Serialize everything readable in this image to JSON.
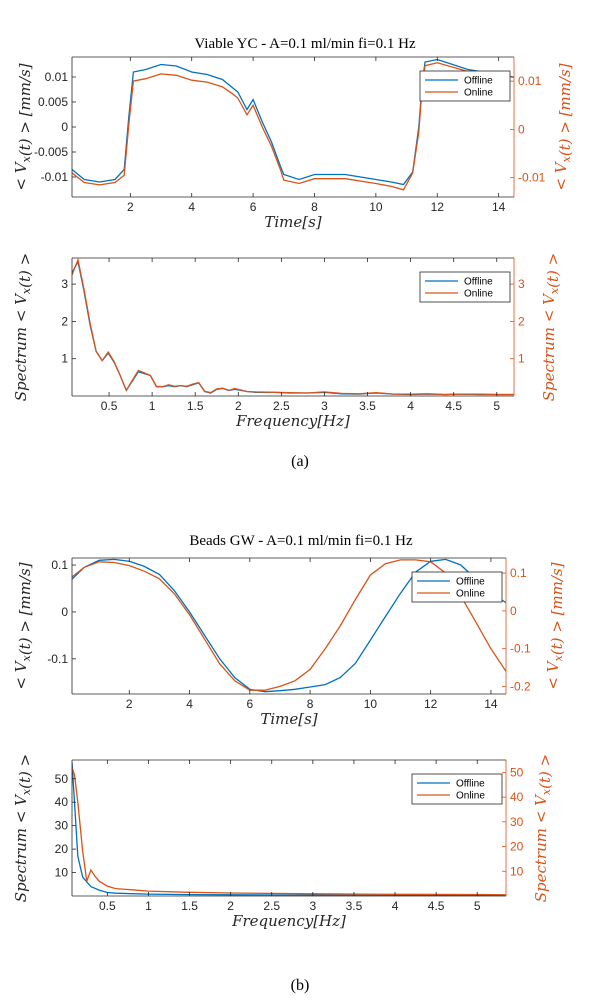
{
  "colors": {
    "offline": "#0072BD",
    "online": "#D95319",
    "axis": "#262626"
  },
  "figure": {
    "caption_a": "(a)",
    "caption_b": "(b)",
    "title_a": "Viable YC - A=0.1 ml/min fi=0.1 Hz",
    "title_b": "Beads GW - A=0.1 ml/min fi=0.1 Hz"
  },
  "chart_data": [
    {
      "type": "line",
      "title": "Viable YC - A=0.1 ml/min fi=0.1 Hz",
      "xlabel": "Time[s]",
      "ylabel_left": "< V_x(t) > [mm/s]",
      "ylabel_right": "< V_x(t) > [mm/s]",
      "xlim": [
        0.1,
        14.5
      ],
      "ylim_left": [
        -0.014,
        0.014
      ],
      "ylim_right": [
        -0.014,
        0.015
      ],
      "xticks": [
        "2",
        "4",
        "6",
        "8",
        "10",
        "12",
        "14"
      ],
      "yticks_left": [
        "-0.01",
        "-0.005",
        "0",
        "0.005",
        "0.01"
      ],
      "yticks_right": [
        "-0.01",
        "0",
        "0.01"
      ],
      "legend": [
        "Offline",
        "Online"
      ],
      "legend_position": "top-right",
      "series": [
        {
          "name": "Offline",
          "axis": "left",
          "x": [
            0.1,
            0.5,
            1.0,
            1.5,
            1.8,
            1.95,
            2.1,
            2.5,
            3.0,
            3.5,
            4.0,
            4.5,
            5.0,
            5.3,
            5.5,
            5.8,
            6.0,
            6.3,
            6.6,
            6.9,
            7.0,
            7.5,
            8.0,
            9.0,
            10.0,
            10.5,
            10.9,
            11.2,
            11.4,
            11.5,
            11.6,
            12.0,
            13.0,
            14.0,
            14.5
          ],
          "y": [
            -0.0085,
            -0.0105,
            -0.011,
            -0.0105,
            -0.0085,
            0.002,
            0.011,
            0.0115,
            0.0125,
            0.0122,
            0.011,
            0.0105,
            0.0095,
            0.008,
            0.007,
            0.0035,
            0.0055,
            0.001,
            -0.003,
            -0.008,
            -0.0095,
            -0.0105,
            -0.0095,
            -0.0095,
            -0.0105,
            -0.011,
            -0.0115,
            -0.009,
            -0.0,
            0.008,
            0.013,
            0.0135,
            0.0115,
            0.0105,
            0.01
          ]
        },
        {
          "name": "Online",
          "axis": "right",
          "x": [
            0.1,
            0.5,
            1.0,
            1.5,
            1.8,
            1.95,
            2.1,
            2.5,
            3.0,
            3.5,
            4.0,
            4.5,
            5.0,
            5.3,
            5.5,
            5.8,
            6.0,
            6.3,
            6.6,
            6.9,
            7.0,
            7.5,
            8.0,
            9.0,
            10.0,
            10.5,
            10.9,
            11.2,
            11.4,
            11.5,
            11.6,
            12.0,
            13.0,
            14.0,
            14.5
          ],
          "y": [
            -0.009,
            -0.011,
            -0.0115,
            -0.011,
            -0.0095,
            0.001,
            0.01,
            0.0105,
            0.0115,
            0.0112,
            0.0102,
            0.0098,
            0.0088,
            0.0075,
            0.0065,
            0.003,
            0.005,
            0.0005,
            -0.0035,
            -0.0085,
            -0.0105,
            -0.0112,
            -0.0102,
            -0.0102,
            -0.0112,
            -0.0118,
            -0.0125,
            -0.009,
            -0.0005,
            0.008,
            0.0132,
            0.0138,
            0.012,
            0.0112,
            0.0108
          ]
        }
      ]
    },
    {
      "type": "line",
      "title": "",
      "xlabel": "Frequency[Hz]",
      "ylabel_left": "Spectrum < V_x(t) >",
      "ylabel_right": "Spectrum < V_x(t) >",
      "xlim": [
        0.07,
        5.2
      ],
      "ylim_left": [
        0,
        3.7
      ],
      "ylim_right": [
        0,
        3.7
      ],
      "xticks": [
        "0.5",
        "1",
        "1.5",
        "2",
        "2.5",
        "3",
        "3.5",
        "4",
        "4.5",
        "5"
      ],
      "yticks_left": [
        "1",
        "2",
        "3"
      ],
      "yticks_right": [
        "1",
        "2",
        "3"
      ],
      "legend": [
        "Offline",
        "Online"
      ],
      "legend_position": "top-right",
      "series": [
        {
          "name": "Offline",
          "axis": "left",
          "x": [
            0.07,
            0.14,
            0.21,
            0.28,
            0.35,
            0.42,
            0.49,
            0.56,
            0.63,
            0.7,
            0.77,
            0.84,
            0.91,
            0.98,
            1.05,
            1.12,
            1.19,
            1.26,
            1.33,
            1.4,
            1.47,
            1.54,
            1.61,
            1.68,
            1.75,
            1.82,
            1.89,
            1.96,
            2.03,
            2.1,
            2.2,
            2.4,
            2.6,
            2.8,
            3.0,
            3.2,
            3.4,
            3.6,
            3.8,
            4.0,
            4.2,
            4.4,
            4.6,
            4.8,
            5.0,
            5.2
          ],
          "y": [
            3.3,
            3.6,
            2.8,
            1.9,
            1.2,
            0.95,
            1.15,
            0.9,
            0.55,
            0.15,
            0.4,
            0.65,
            0.6,
            0.55,
            0.25,
            0.25,
            0.28,
            0.25,
            0.28,
            0.25,
            0.3,
            0.35,
            0.12,
            0.08,
            0.18,
            0.2,
            0.15,
            0.18,
            0.15,
            0.12,
            0.1,
            0.1,
            0.08,
            0.08,
            0.1,
            0.06,
            0.05,
            0.08,
            0.05,
            0.04,
            0.05,
            0.04,
            0.05,
            0.04,
            0.04,
            0.04
          ]
        },
        {
          "name": "Online",
          "axis": "right",
          "x": [
            0.07,
            0.14,
            0.21,
            0.28,
            0.35,
            0.42,
            0.49,
            0.56,
            0.63,
            0.7,
            0.77,
            0.84,
            0.91,
            0.98,
            1.05,
            1.12,
            1.19,
            1.26,
            1.33,
            1.4,
            1.47,
            1.54,
            1.61,
            1.68,
            1.75,
            1.82,
            1.89,
            1.96,
            2.03,
            2.1,
            2.2,
            2.4,
            2.6,
            2.8,
            3.0,
            3.2,
            3.4,
            3.6,
            3.8,
            4.0,
            4.2,
            4.4,
            4.6,
            4.8,
            5.0,
            5.2
          ],
          "y": [
            3.25,
            3.65,
            2.85,
            1.95,
            1.2,
            0.95,
            1.18,
            0.92,
            0.55,
            0.15,
            0.42,
            0.68,
            0.62,
            0.55,
            0.26,
            0.25,
            0.3,
            0.26,
            0.28,
            0.26,
            0.32,
            0.36,
            0.13,
            0.09,
            0.19,
            0.21,
            0.15,
            0.2,
            0.16,
            0.12,
            0.11,
            0.1,
            0.09,
            0.08,
            0.11,
            0.07,
            0.06,
            0.09,
            0.05,
            0.05,
            0.06,
            0.04,
            0.05,
            0.05,
            0.04,
            0.04
          ]
        }
      ]
    },
    {
      "type": "line",
      "title": "Beads GW - A=0.1 ml/min fi=0.1 Hz",
      "xlabel": "Time[s]",
      "ylabel_left": "< V_x(t) > [mm/s]",
      "ylabel_right": "< V_x(t) > [mm/s]",
      "xlim": [
        0.1,
        14.5
      ],
      "ylim_left": [
        -0.175,
        0.115
      ],
      "ylim_right": [
        -0.22,
        0.14
      ],
      "xticks": [
        "2",
        "4",
        "6",
        "8",
        "10",
        "12",
        "14"
      ],
      "yticks_left": [
        "-0.1",
        "0",
        "0.1"
      ],
      "yticks_right": [
        "-0.2",
        "-0.1",
        "0",
        "0.1"
      ],
      "legend": [
        "Offline",
        "Online"
      ],
      "legend_position": "top-right",
      "series": [
        {
          "name": "Offline",
          "axis": "left",
          "x": [
            0.1,
            0.5,
            1.0,
            1.5,
            2.0,
            2.5,
            3.0,
            3.5,
            4.0,
            4.5,
            5.0,
            5.5,
            6.0,
            6.5,
            7.0,
            7.5,
            8.0,
            8.5,
            9.0,
            9.5,
            10.0,
            10.5,
            11.0,
            11.5,
            12.0,
            12.5,
            13.0,
            13.5,
            14.0,
            14.5
          ],
          "y": [
            0.07,
            0.095,
            0.11,
            0.112,
            0.108,
            0.097,
            0.08,
            0.045,
            0.0,
            -0.05,
            -0.1,
            -0.14,
            -0.165,
            -0.17,
            -0.168,
            -0.165,
            -0.16,
            -0.155,
            -0.14,
            -0.11,
            -0.06,
            -0.01,
            0.04,
            0.085,
            0.108,
            0.112,
            0.1,
            0.07,
            0.04,
            0.02
          ]
        },
        {
          "name": "Online",
          "axis": "right",
          "x": [
            0.1,
            0.5,
            1.0,
            1.5,
            2.0,
            2.5,
            3.0,
            3.5,
            4.0,
            4.5,
            5.0,
            5.5,
            6.0,
            6.5,
            7.0,
            7.5,
            8.0,
            8.5,
            9.0,
            9.5,
            10.0,
            10.5,
            11.0,
            11.5,
            12.0,
            12.5,
            13.0,
            13.5,
            14.0,
            14.5
          ],
          "y": [
            0.09,
            0.115,
            0.13,
            0.128,
            0.12,
            0.105,
            0.085,
            0.045,
            -0.01,
            -0.075,
            -0.14,
            -0.185,
            -0.21,
            -0.21,
            -0.2,
            -0.185,
            -0.155,
            -0.1,
            -0.04,
            0.03,
            0.095,
            0.125,
            0.135,
            0.135,
            0.13,
            0.1,
            0.04,
            -0.03,
            -0.1,
            -0.16
          ]
        }
      ]
    },
    {
      "type": "line",
      "title": "",
      "xlabel": "Frequency[Hz]",
      "ylabel_left": "Spectrum < V_x(t) >",
      "ylabel_right": "Spectrum < V_x(t) >",
      "xlim": [
        0.07,
        5.35
      ],
      "ylim_left": [
        0,
        58
      ],
      "ylim_right": [
        0,
        55
      ],
      "xticks": [
        "0.5",
        "1",
        "1.5",
        "2",
        "2.5",
        "3",
        "3.5",
        "4",
        "4.5",
        "5"
      ],
      "yticks_left": [
        "10",
        "20",
        "30",
        "40",
        "50"
      ],
      "yticks_right": [
        "10",
        "20",
        "30",
        "40",
        "50"
      ],
      "legend": [
        "Offline",
        "Online"
      ],
      "legend_position": "top-right",
      "series": [
        {
          "name": "Offline",
          "axis": "left",
          "x": [
            0.07,
            0.1,
            0.14,
            0.2,
            0.3,
            0.4,
            0.5,
            0.6,
            0.8,
            1.0,
            1.5,
            2.0,
            3.0,
            4.0,
            5.0,
            5.35
          ],
          "y": [
            57,
            40,
            17,
            8,
            4,
            2.5,
            1.5,
            1.2,
            1,
            0.8,
            0.6,
            0.5,
            0.4,
            0.3,
            0.3,
            0.3
          ]
        },
        {
          "name": "Online",
          "axis": "right",
          "x": [
            0.07,
            0.1,
            0.14,
            0.2,
            0.25,
            0.3,
            0.35,
            0.4,
            0.5,
            0.6,
            0.8,
            1.0,
            1.5,
            2.0,
            3.0,
            4.0,
            5.0,
            5.35
          ],
          "y": [
            52,
            49,
            38,
            18,
            6,
            10.5,
            8,
            6,
            4,
            3,
            2.5,
            2,
            1.5,
            1.2,
            0.9,
            0.7,
            0.6,
            0.5
          ]
        }
      ]
    }
  ]
}
